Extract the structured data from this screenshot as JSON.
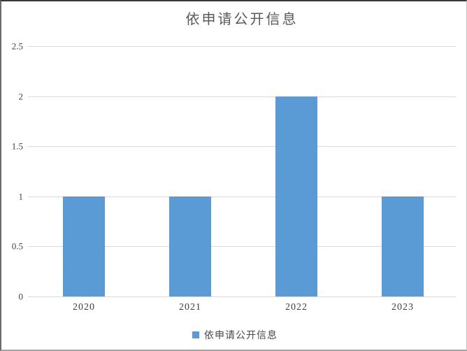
{
  "chart_data": {
    "type": "bar",
    "title": "依申请公开信息",
    "categories": [
      "2020",
      "2021",
      "2022",
      "2023"
    ],
    "series": [
      {
        "name": "依申请公开信息",
        "values": [
          1,
          1,
          2,
          1
        ]
      }
    ],
    "xlabel": "",
    "ylabel": "",
    "ylim": [
      0,
      2.5
    ],
    "yticks": [
      0,
      0.5,
      1,
      1.5,
      2,
      2.5
    ],
    "ytick_labels": [
      "0",
      "0.5",
      "1",
      "1.5",
      "2",
      "2.5"
    ],
    "grid": "horizontal-on",
    "legend_position": "bottom",
    "colors": {
      "bar": "#5B9BD5",
      "gridline": "#D9D9D9",
      "title_text": "#595959",
      "axis_text": "#454545"
    }
  }
}
